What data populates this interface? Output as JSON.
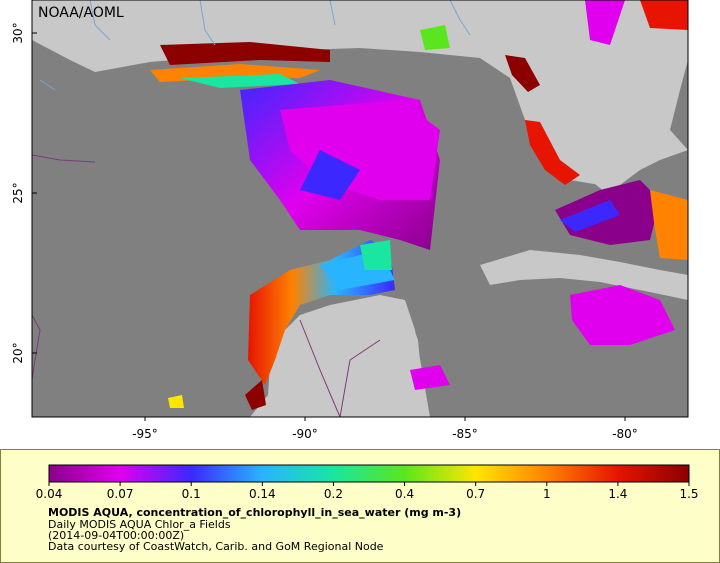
{
  "credit": "NOAA/AOML",
  "axes": {
    "lon_labels": [
      "-95°",
      "-90°",
      "-85°",
      "-80°"
    ],
    "lat_labels": [
      "20°",
      "25°",
      "30°"
    ]
  },
  "legend": {
    "ticks": [
      "0.04",
      "0.07",
      "0.1",
      "0.14",
      "0.2",
      "0.4",
      "0.7",
      "1",
      "1.4",
      "1.5"
    ],
    "colors": [
      "#8a008a",
      "#e000ee",
      "#3c28ff",
      "#28b4ff",
      "#19e6a0",
      "#5ae61e",
      "#ffe600",
      "#ff8200",
      "#e61400",
      "#8c0000"
    ],
    "title": "MODIS AQUA, concentration_of_chlorophyll_in_sea_water (mg m-3)",
    "line2": "Daily MODIS AQUA Chlor_a Fields",
    "line3": "(2014-09-04T00:00:00Z)",
    "line4": "Data courtesy of CoastWatch, Carib. and GoM Regional Node"
  },
  "colors": {
    "ocean_nodata": "#808080",
    "land": "#c8c8c8",
    "panel": "#fefec8"
  }
}
